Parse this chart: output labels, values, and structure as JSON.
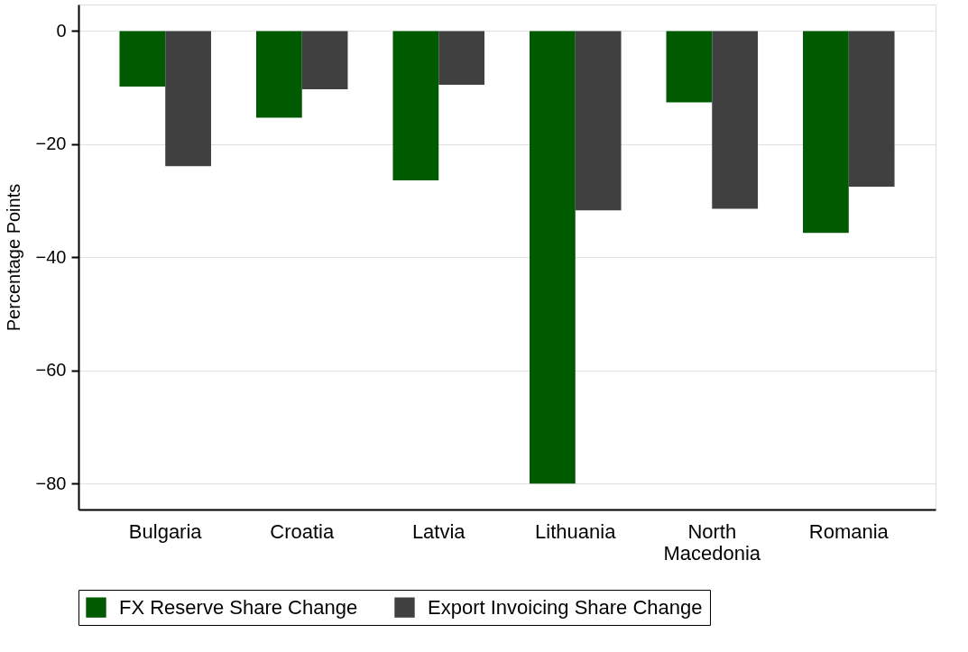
{
  "chart_data": {
    "type": "bar",
    "ylabel": "Percentage Points",
    "categories": [
      "Bulgaria",
      "Croatia",
      "Latvia",
      "Lithuania",
      "North Macedonia",
      "Romania"
    ],
    "series": [
      {
        "name": "FX Reserve Share Change",
        "color": "#005a00",
        "values": [
          -9.8,
          -15.3,
          -26.4,
          -80.0,
          -12.6,
          -35.7
        ]
      },
      {
        "name": "Export Invoicing Share Change",
        "color": "#404040",
        "values": [
          -23.9,
          -10.3,
          -9.5,
          -31.7,
          -31.4,
          -27.5
        ]
      }
    ],
    "ylim": [
      -84.6,
      4.7
    ],
    "yticks": [
      0,
      -20,
      -40,
      -60,
      -80
    ],
    "grid": "y",
    "legend": "bottom"
  }
}
